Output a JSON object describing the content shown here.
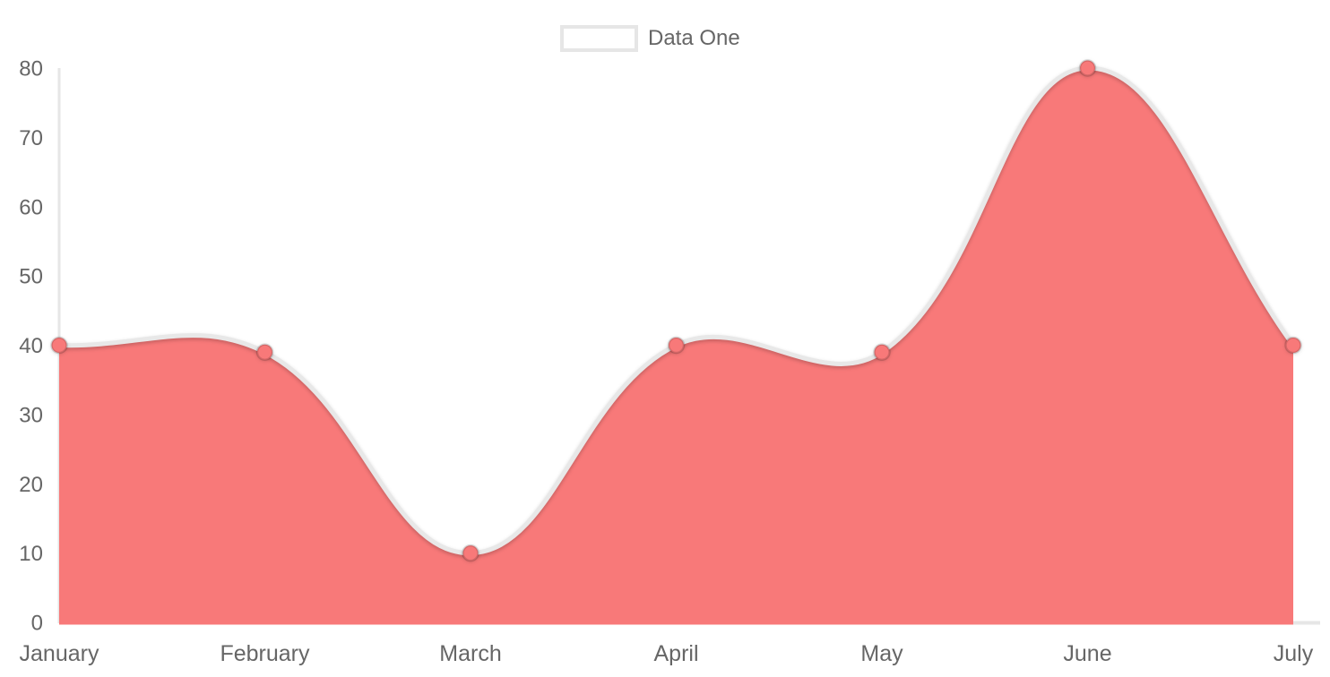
{
  "legend": {
    "label": "Data One",
    "position": "top"
  },
  "colors": {
    "area_fill": "#f87979",
    "line": "#e8e8e8",
    "axis_line": "#e6e6e6",
    "tick_text": "#666666",
    "point_fill": "#f87979",
    "point_border": "rgba(0,0,0,0.14)",
    "legend_box_fill": "#f87979",
    "legend_box_border": "#e6e6e6"
  },
  "chart_data": {
    "type": "area",
    "title": "",
    "xlabel": "",
    "ylabel": "",
    "categories": [
      "January",
      "February",
      "March",
      "April",
      "May",
      "June",
      "July"
    ],
    "series": [
      {
        "name": "Data One",
        "values": [
          40,
          39,
          10,
          40,
          39,
          80,
          40
        ],
        "color": "#f87979"
      }
    ],
    "ylim": [
      0,
      80
    ],
    "y_ticks": [
      0,
      10,
      20,
      30,
      40,
      50,
      60,
      70,
      80
    ],
    "grid": false,
    "legend_position": "top",
    "line_tension": 0.4
  }
}
